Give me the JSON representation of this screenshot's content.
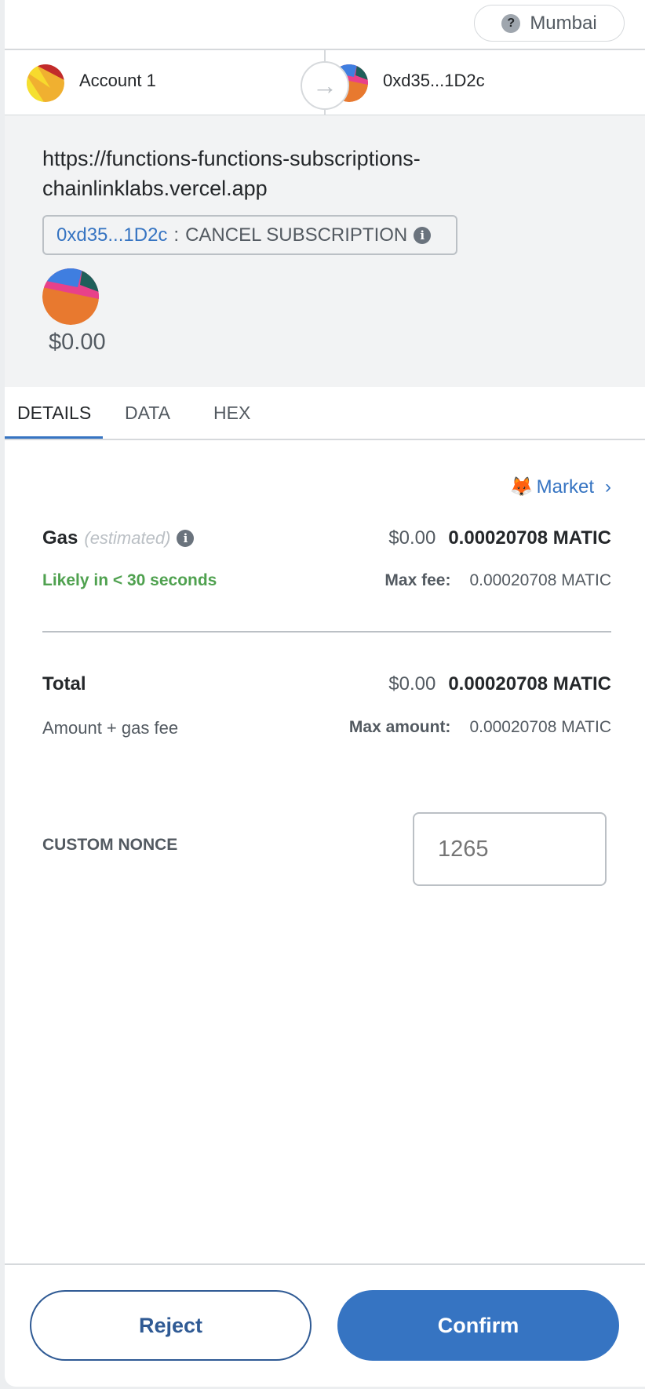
{
  "network": {
    "name": "Mumbai",
    "icon": "question-icon"
  },
  "from": {
    "name": "Account 1"
  },
  "to": {
    "address": "0xd35...1D2c"
  },
  "origin": {
    "url_line1": "https://functions-functions-subscriptions-",
    "url_line2": "chainlinklabs.vercel.app"
  },
  "method": {
    "address": "0xd35...1D2c",
    "separator": ":",
    "name": "CANCEL SUBSCRIPTION"
  },
  "value": "$0.00",
  "tabs": [
    {
      "label": "DETAILS",
      "active": true
    },
    {
      "label": "DATA"
    },
    {
      "label": "HEX"
    }
  ],
  "market": {
    "label": "Market",
    "icon": "fox-icon"
  },
  "gas": {
    "label": "Gas",
    "estimated": "(estimated)",
    "fiat": "$0.00",
    "amount": "0.00020708 MATIC",
    "likely": "Likely in < 30 seconds",
    "max_fee_label": "Max fee:",
    "max_fee": "0.00020708 MATIC"
  },
  "total": {
    "label": "Total",
    "fiat": "$0.00",
    "amount": "0.00020708 MATIC",
    "sub": "Amount + gas fee",
    "max_label": "Max amount:",
    "max": "0.00020708 MATIC"
  },
  "nonce": {
    "label": "CUSTOM NONCE",
    "placeholder": "1265"
  },
  "actions": {
    "reject": "Reject",
    "confirm": "Confirm"
  },
  "colors": {
    "primary": "#3674c2",
    "success": "#4fa14f"
  }
}
